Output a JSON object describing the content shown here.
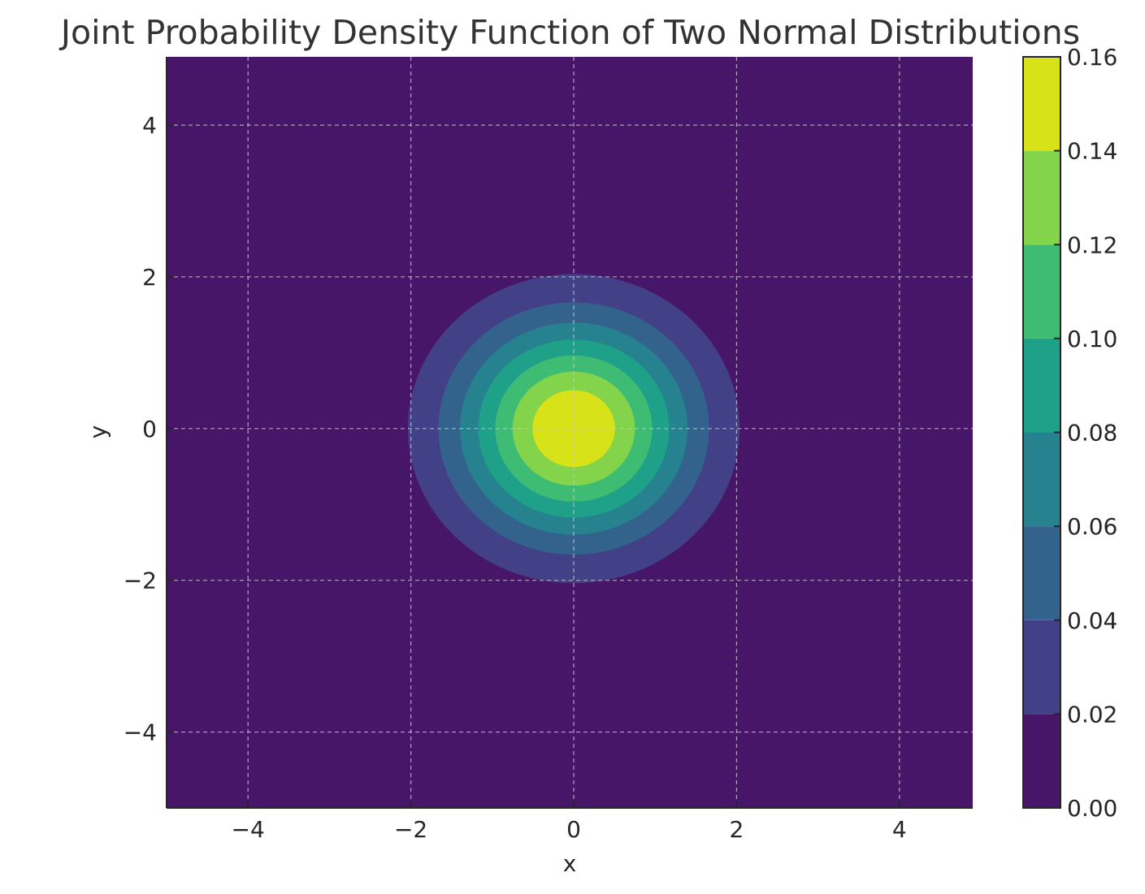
{
  "chart_data": {
    "type": "heatmap",
    "subtype": "filled-contour",
    "title": "Joint Probability Density Function of Two Normal Distributions",
    "xlabel": "x",
    "ylabel": "y",
    "xlim": [
      -5,
      4.9
    ],
    "ylim": [
      -5,
      4.9
    ],
    "xticks": [
      -4,
      -2,
      0,
      2,
      4
    ],
    "yticks": [
      -4,
      -2,
      0,
      2,
      4
    ],
    "xtick_labels": [
      "−4",
      "−2",
      "0",
      "2",
      "4"
    ],
    "ytick_labels": [
      "−4",
      "−2",
      "0",
      "2",
      "4"
    ],
    "grid": true,
    "distribution": {
      "x": {
        "mean": 0,
        "std": 1
      },
      "y": {
        "mean": 0,
        "std": 1
      }
    },
    "levels": [
      0.0,
      0.02,
      0.04,
      0.06,
      0.08,
      0.1,
      0.12,
      0.14,
      0.16
    ],
    "level_colors": [
      "#481668",
      "#424086",
      "#33638d",
      "#26828e",
      "#1fa088",
      "#3fbc73",
      "#84d44b",
      "#d8e219"
    ],
    "colorbar": {
      "ticks": [
        0.0,
        0.02,
        0.04,
        0.06,
        0.08,
        0.1,
        0.12,
        0.14,
        0.16
      ],
      "tick_labels": [
        "0.00",
        "0.02",
        "0.04",
        "0.06",
        "0.08",
        "0.10",
        "0.12",
        "0.14",
        "0.16"
      ]
    }
  }
}
